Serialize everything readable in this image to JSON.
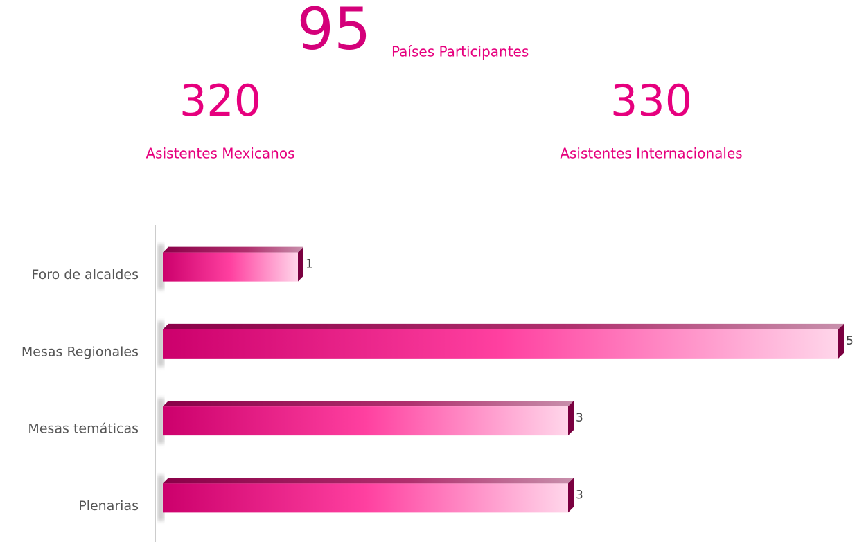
{
  "stats": [
    {
      "value": 95,
      "label": "Países Participantes"
    },
    {
      "value": 320,
      "label": "Asistentes Mexicanos"
    },
    {
      "value": 330,
      "label": "Asistentes Internacionales"
    }
  ],
  "chart_data": {
    "type": "bar",
    "orientation": "horizontal",
    "categories": [
      "Foro de alcaldes",
      "Mesas Regionales",
      "Mesas temáticas",
      "Plenarias"
    ],
    "values": [
      1,
      5,
      3,
      3
    ],
    "color": "#e6007e",
    "xlim": [
      0,
      5
    ]
  }
}
